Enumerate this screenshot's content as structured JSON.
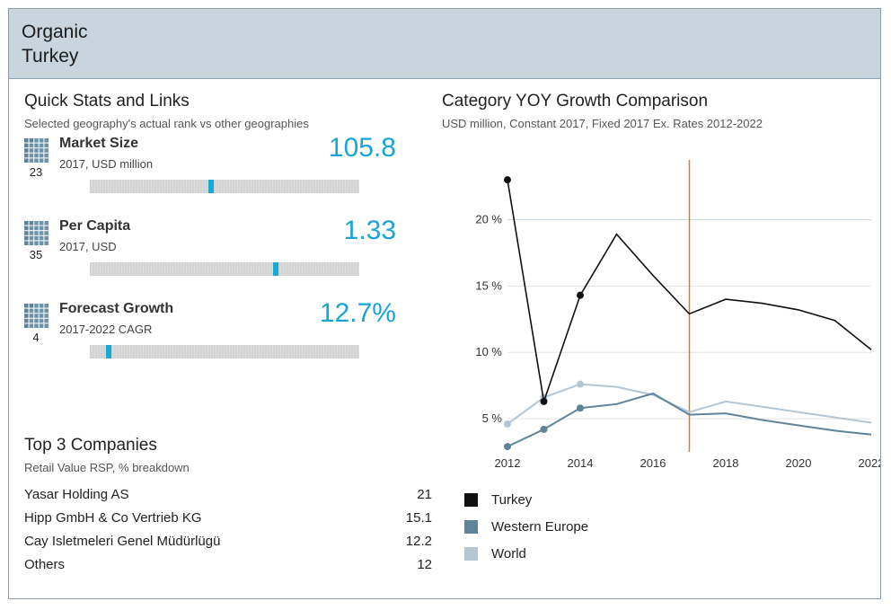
{
  "header": {
    "title_line1": "Organic",
    "title_line2": "Turkey"
  },
  "quick_stats": {
    "title": "Quick Stats and Links",
    "subtitle": "Selected geography's actual rank vs other geographies",
    "items": [
      {
        "label": "Market Size",
        "unit": "2017, USD million",
        "value": "105.8",
        "rank": "23",
        "bar_level": 0.45,
        "icon": "grid-icon"
      },
      {
        "label": "Per Capita",
        "unit": "2017, USD",
        "value": "1.33",
        "rank": "35",
        "bar_level": 0.69,
        "icon": "grid-icon"
      },
      {
        "label": "Forecast Growth",
        "unit": "2017-2022 CAGR",
        "value": "12.7%",
        "rank": "4",
        "bar_level": 0.07,
        "icon": "grid-icon"
      }
    ]
  },
  "companies": {
    "title": "Top 3 Companies",
    "subtitle": "Retail Value RSP, % breakdown",
    "rows": [
      {
        "name": "Yasar Holding AS",
        "value": "21"
      },
      {
        "name": "Hipp GmbH & Co Vertrieb KG",
        "value": "15.1"
      },
      {
        "name": "Cay Isletmeleri Genel Müdürlügü",
        "value": "12.2"
      },
      {
        "name": "Others",
        "value": "12"
      }
    ]
  },
  "chart_title": "Category YOY Growth Comparison",
  "chart_subtitle": "USD million, Constant 2017, Fixed 2017 Ex. Rates 2012-2022",
  "colors": {
    "turkey": "#111111",
    "western_europe": "#5f8499",
    "world": "#b4c5d3",
    "accent": "#1aa3d6",
    "divider": "#e07a1f"
  },
  "chart_data": {
    "type": "line",
    "x": [
      2012,
      2013,
      2014,
      2015,
      2016,
      2017,
      2018,
      2019,
      2020,
      2021,
      2022
    ],
    "series": [
      {
        "name": "Turkey",
        "values": [
          23.0,
          6.3,
          14.3,
          18.9,
          15.8,
          12.9,
          14.0,
          13.7,
          13.2,
          12.4,
          10.2
        ]
      },
      {
        "name": "Western Europe",
        "values": [
          2.9,
          4.2,
          5.8,
          6.1,
          6.9,
          5.3,
          5.4,
          4.9,
          4.5,
          4.1,
          3.8
        ]
      },
      {
        "name": "World",
        "values": [
          4.6,
          6.6,
          7.6,
          7.4,
          6.8,
          5.5,
          6.3,
          5.9,
          5.5,
          5.1,
          4.7
        ]
      }
    ],
    "xticks": [
      "2012",
      "2014",
      "2016",
      "2018",
      "2020",
      "2022"
    ],
    "yticks": [
      "5 %",
      "10 %",
      "15 %",
      "20 %"
    ],
    "ytick_values": [
      5,
      10,
      15,
      20
    ],
    "ylim": [
      2.5,
      24.5
    ],
    "xlim": [
      2012,
      2022
    ],
    "vertical_marker_x": 2017,
    "marked_years": [
      2012,
      2013,
      2014
    ],
    "grid": true,
    "legend": "bottom"
  }
}
